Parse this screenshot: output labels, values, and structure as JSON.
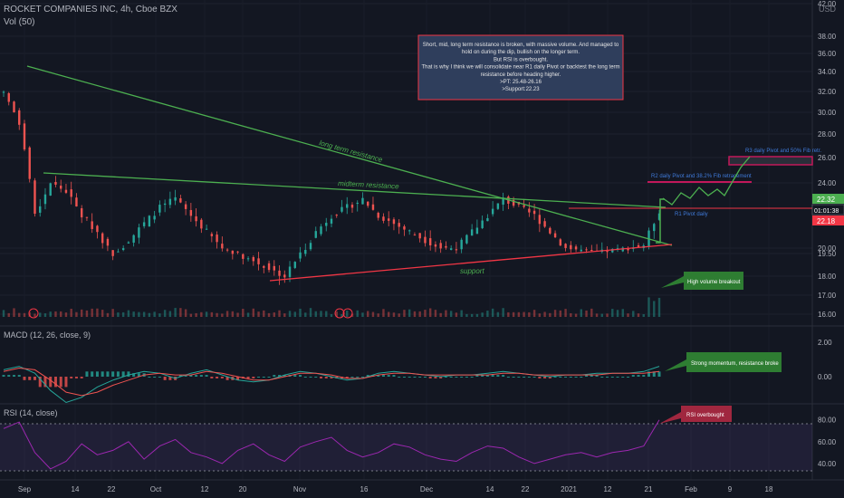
{
  "header": {
    "symbol_line": "ROCKET COMPANIES INC, 4h, Cboe BZX",
    "vol_label": "Vol (50)",
    "currency": "USD"
  },
  "colors": {
    "background": "#131722",
    "up": "#26a69a",
    "down": "#ef5350",
    "trend_green": "#4caf50",
    "support_red": "#f23645",
    "macd_line": "#26a69a",
    "signal_line": "#ef5350",
    "rsi_line": "#9c27b0",
    "note_fill": "#2f3e5c",
    "note_border": "#f23645"
  },
  "chart_data": [
    {
      "type": "candlestick",
      "panel": "price",
      "y_ticks": [
        42,
        38,
        36,
        34,
        32,
        30,
        28,
        26,
        24,
        20,
        19.5,
        18,
        17,
        16
      ],
      "ylim": [
        15.8,
        42
      ],
      "x_labels": [
        "Sep",
        "14",
        "22",
        "Oct",
        "12",
        "20",
        "Nov",
        "16",
        "Dec",
        "14",
        "22",
        "2021",
        "12",
        "21",
        "Feb",
        "9",
        "18"
      ],
      "price_tags": [
        {
          "value": "22.32",
          "color": "#4caf50"
        },
        {
          "value": "01:01:38",
          "color": "#131722"
        },
        {
          "value": "22.18",
          "color": "#f23645"
        }
      ],
      "close_approx": [
        32,
        29,
        22,
        24,
        23.5,
        22,
        21,
        19.5,
        20.5,
        21.5,
        22.5,
        23,
        22,
        21,
        20,
        19.5,
        19,
        18.5,
        18,
        19.5,
        21,
        22,
        22.5,
        23,
        22,
        21.5,
        21,
        20.5,
        20,
        20,
        21,
        22,
        23,
        22.5,
        22,
        21,
        20,
        19.8,
        19.6,
        19.8,
        20,
        20.2,
        22.3
      ],
      "annotations": {
        "trendlines": [
          "long term resistance",
          "midterm resistance",
          "support"
        ],
        "levels": [
          "R1 Pivot daily",
          "R2 daily Pivot and 38.2% Fib retracement",
          "R3 daily Pivot and 50% Fib retr."
        ],
        "callout": "High volume breakout"
      },
      "note_lines": [
        "Short, mid, long term resistance is broken, with massive volume. And managed to",
        "hold on during the dip, bullish on the longer term.",
        "But RSI is overbought.",
        "That is why I think we will consolidate near R1 daily Pivot or backtest the long term",
        "resistance before heading higher.",
        ">PT: 25.48-26.16",
        ">Support:22.23"
      ]
    },
    {
      "type": "line",
      "panel": "macd",
      "title": "MACD (12, 26, close, 9)",
      "y_ticks": [
        "2.00",
        "0.00"
      ],
      "series": [
        {
          "name": "MACD",
          "values": [
            0.4,
            0.6,
            0.2,
            -0.8,
            -1.5,
            -1.2,
            -0.6,
            -0.2,
            0.1,
            0.3,
            0.2,
            -0.1,
            0.2,
            0.4,
            0.1,
            -0.2,
            -0.3,
            -0.2,
            0.1,
            0.3,
            0.2,
            0.0,
            -0.2,
            -0.1,
            0.2,
            0.3,
            0.2,
            0.1,
            0.0,
            0.1,
            0.1,
            0.2,
            0.3,
            0.2,
            0.1,
            0.0,
            0.1,
            0.1,
            0.2,
            0.2,
            0.2,
            0.3,
            0.6
          ]
        },
        {
          "name": "Signal",
          "values": [
            0.3,
            0.5,
            0.4,
            -0.2,
            -0.9,
            -1.1,
            -0.9,
            -0.5,
            -0.2,
            0.1,
            0.2,
            0.1,
            0.1,
            0.3,
            0.2,
            0.0,
            -0.2,
            -0.2,
            0.0,
            0.2,
            0.2,
            0.1,
            -0.1,
            -0.1,
            0.1,
            0.2,
            0.2,
            0.1,
            0.1,
            0.1,
            0.1,
            0.1,
            0.2,
            0.2,
            0.1,
            0.1,
            0.1,
            0.1,
            0.1,
            0.2,
            0.2,
            0.2,
            0.3
          ]
        }
      ],
      "callout": "Strong momentum, resistance broke"
    },
    {
      "type": "line",
      "panel": "rsi",
      "title": "RSI (14, close)",
      "y_ticks": [
        "80.00",
        "60.00",
        "40.00"
      ],
      "ylim": [
        25,
        88
      ],
      "values": [
        72,
        78,
        50,
        35,
        42,
        58,
        48,
        52,
        60,
        44,
        56,
        62,
        50,
        46,
        40,
        52,
        58,
        48,
        42,
        55,
        60,
        64,
        52,
        46,
        50,
        58,
        55,
        48,
        44,
        42,
        50,
        56,
        54,
        46,
        40,
        44,
        48,
        50,
        46,
        50,
        52,
        56,
        80
      ],
      "callout": "RSI overbought"
    }
  ]
}
